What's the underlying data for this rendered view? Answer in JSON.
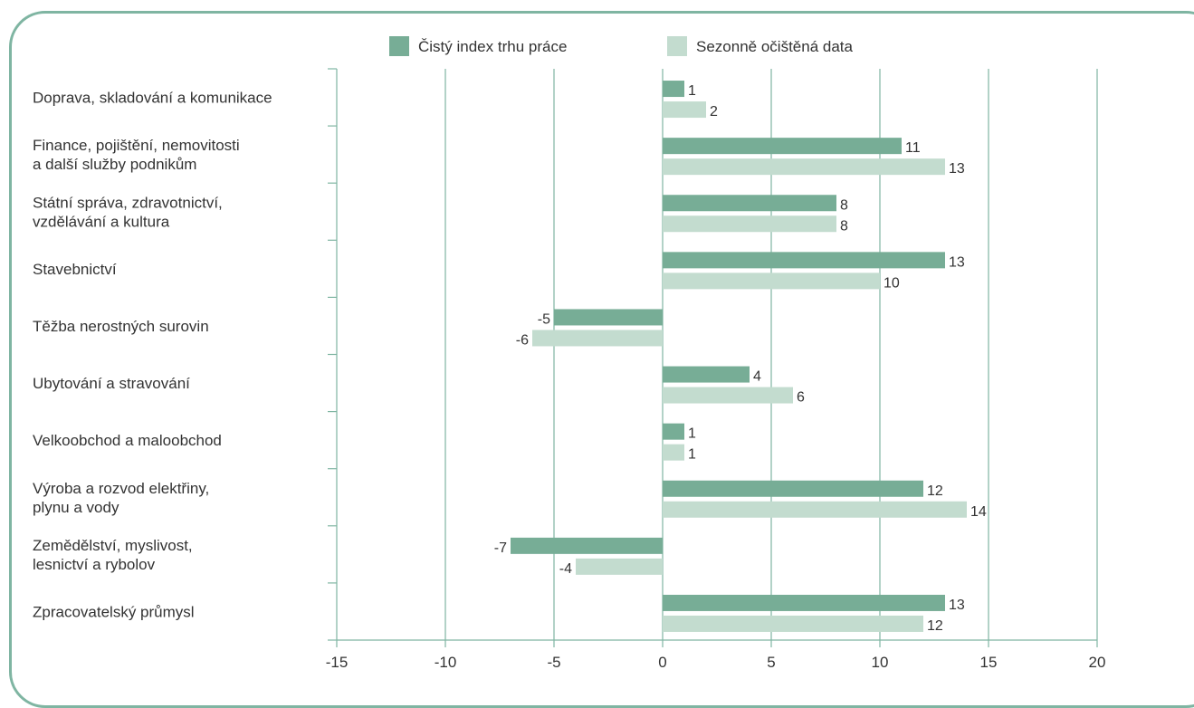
{
  "chart_data": {
    "type": "bar",
    "orientation": "horizontal",
    "categories": [
      [
        "Doprava, skladování a komunikace"
      ],
      [
        "Finance, pojištění, nemovitosti",
        "a další služby podnikům"
      ],
      [
        "Státní správa, zdravotnictví,",
        "vzdělávání a kultura"
      ],
      [
        "Stavebnictví"
      ],
      [
        "Těžba nerostných surovin"
      ],
      [
        "Ubytování a stravování"
      ],
      [
        "Velkoobchod a maloobchod"
      ],
      [
        "Výroba a rozvod elektřiny,",
        "plynu a vody"
      ],
      [
        "Zemědělství, myslivost,",
        "lesnictví a rybolov"
      ],
      [
        "Zpracovatelský průmysl"
      ]
    ],
    "series": [
      {
        "name": "Čistý index trhu práce",
        "color": "#77ad96",
        "values": [
          1,
          11,
          8,
          13,
          -5,
          4,
          1,
          12,
          -7,
          13
        ]
      },
      {
        "name": "Sezonně očištěná data",
        "color": "#c3dccf",
        "values": [
          2,
          13,
          8,
          10,
          -6,
          6,
          1,
          14,
          -4,
          12
        ]
      }
    ],
    "xlim": [
      -15,
      20
    ],
    "xticks": [
      -15,
      -10,
      -5,
      0,
      5,
      10,
      15,
      20
    ],
    "grid": "vertical",
    "legend_position": "top",
    "axis_color": "#7fb5a2"
  }
}
